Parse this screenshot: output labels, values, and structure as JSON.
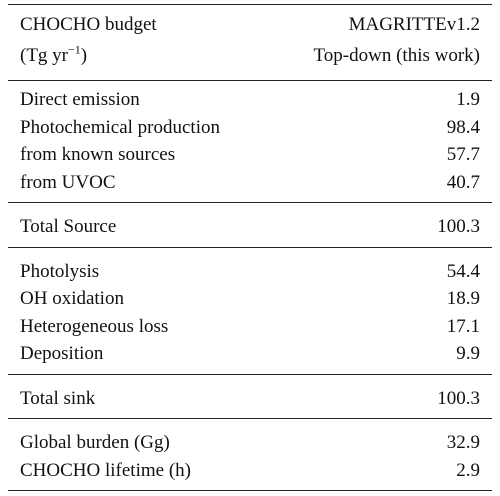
{
  "header": {
    "left": {
      "line1": "CHOCHO budget",
      "line2": {
        "before": "(Tg yr",
        "sup": "−1",
        "after": ")"
      }
    },
    "right": {
      "line1": "MAGRITTEv1.2",
      "line2": "Top-down (this work)"
    }
  },
  "table": {
    "sections": [
      [
        [
          "Direct emission",
          "1.9"
        ],
        [
          "Photochemical production",
          "98.4"
        ],
        [
          "from known sources",
          "57.7"
        ],
        [
          "from UVOC",
          "40.7"
        ]
      ],
      [
        [
          "Total Source",
          "100.3"
        ]
      ],
      [
        [
          "Photolysis",
          "54.4"
        ],
        [
          "OH oxidation",
          "18.9"
        ],
        [
          "Heterogeneous loss",
          "17.1"
        ],
        [
          "Deposition",
          "9.9"
        ]
      ],
      [
        [
          "Total sink",
          "100.3"
        ]
      ],
      [
        [
          "Global burden (Gg)",
          "32.9"
        ],
        [
          "CHOCHO lifetime (h)",
          "2.9"
        ]
      ]
    ]
  }
}
